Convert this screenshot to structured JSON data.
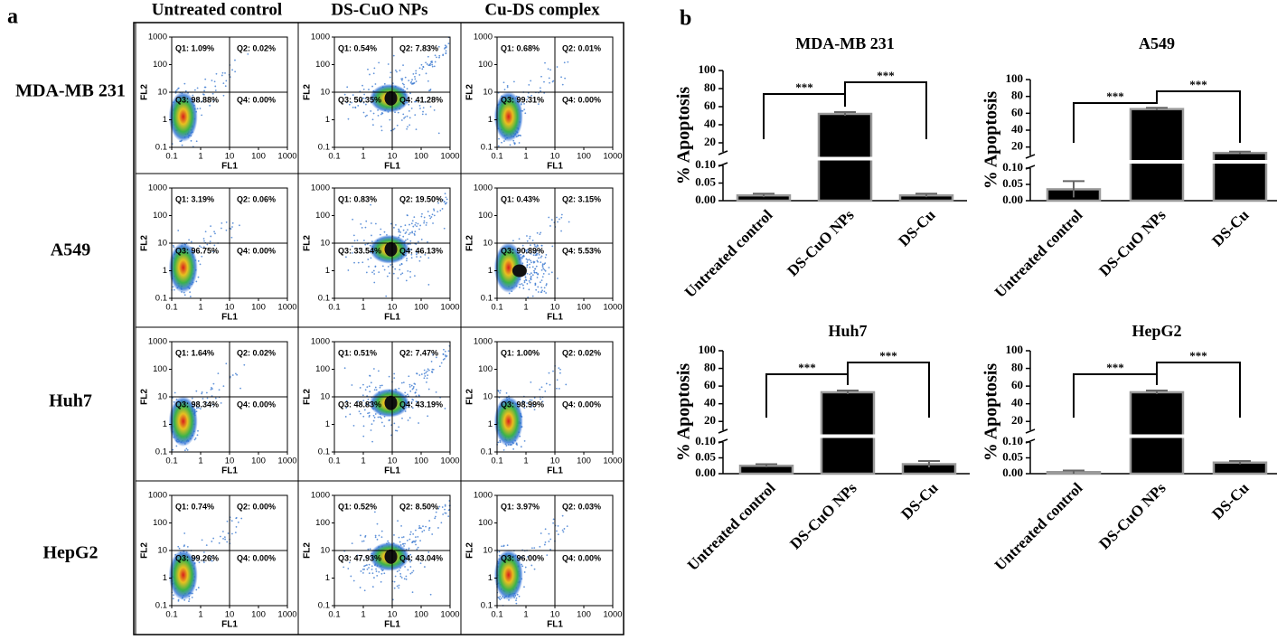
{
  "panel_labels": [
    "a",
    "b"
  ],
  "flow_cytometry": {
    "type": "scatter",
    "x_scale": "log",
    "y_scale": "log",
    "xlabel": "FL1",
    "ylabel": "FL2",
    "xlim": [
      0.1,
      1000
    ],
    "ylim": [
      0.1,
      1000
    ],
    "xticks": [
      0.1,
      1,
      10,
      100,
      1000
    ],
    "yticks": [
      0.1,
      1,
      10,
      100,
      1000
    ],
    "quadrant_gate": [
      10,
      10
    ],
    "columns": [
      "Untreated control",
      "DS-CuO NPs",
      "Cu-DS complex"
    ],
    "rows": [
      "MDA-MB 231",
      "A549",
      "Huh7",
      "HepG2"
    ],
    "quadrants": [
      [
        [
          "Q1: 1.09%",
          "Q2: 0.02%",
          "Q3: 98.88%",
          "Q4: 0.00%"
        ],
        [
          "Q1: 0.54%",
          "Q2: 7.83%",
          "Q3: 50.35%",
          "Q4: 41.28%"
        ],
        [
          "Q1: 0.68%",
          "Q2: 0.01%",
          "Q3: 99.31%",
          "Q4: 0.00%"
        ]
      ],
      [
        [
          "Q1: 3.19%",
          "Q2: 0.06%",
          "Q3: 96.75%",
          "Q4: 0.00%"
        ],
        [
          "Q1: 0.83%",
          "Q2: 19.50%",
          "Q3: 33.54%",
          "Q4: 46.13%"
        ],
        [
          "Q1: 0.43%",
          "Q2: 3.15%",
          "Q3: 90.89%",
          "Q4: 5.53%"
        ]
      ],
      [
        [
          "Q1: 1.64%",
          "Q2: 0.02%",
          "Q3: 98.34%",
          "Q4: 0.00%"
        ],
        [
          "Q1: 0.51%",
          "Q2: 7.47%",
          "Q3: 48.83%",
          "Q4: 43.19%"
        ],
        [
          "Q1: 1.00%",
          "Q2: 0.02%",
          "Q3: 98.99%",
          "Q4: 0.00%"
        ]
      ],
      [
        [
          "Q1: 0.74%",
          "Q2: 0.00%",
          "Q3: 99.26%",
          "Q4: 0.00%"
        ],
        [
          "Q1: 0.52%",
          "Q2: 8.50%",
          "Q3: 47.93%",
          "Q4: 43.04%"
        ],
        [
          "Q1: 3.97%",
          "Q2: 0.03%",
          "Q3: 96.00%",
          "Q4: 0.00%"
        ]
      ]
    ]
  },
  "chart_data": [
    {
      "type": "bar",
      "title": "MDA-MB 231",
      "ylabel": "% Apoptosis",
      "categories": [
        "Untreated control",
        "DS-CuO NPs",
        "DS-Cu"
      ],
      "values": [
        0.015,
        52,
        0.015
      ],
      "errors": [
        0.005,
        2,
        0.005
      ],
      "color": "#000000",
      "ylim": [
        0,
        100
      ],
      "axis_break": [
        0.1,
        10
      ],
      "yticks": [
        {
          "value": 0,
          "label": "0.00"
        },
        {
          "value": 0.05,
          "label": "0.05"
        },
        {
          "value": 0.1,
          "label": "0.10"
        },
        20,
        40,
        60,
        80,
        100
      ],
      "significance_labels": [
        "***",
        "***"
      ]
    },
    {
      "type": "bar",
      "title": "A549",
      "ylabel": "% Apoptosis",
      "categories": [
        "Untreated control",
        "DS-CuO NPs",
        "DS-Cu"
      ],
      "values": [
        0.035,
        65,
        13
      ],
      "errors": [
        0.025,
        1.5,
        1.5
      ],
      "color": "#000000",
      "ylim": [
        0,
        100
      ],
      "axis_break": [
        0.1,
        10
      ],
      "yticks": [
        {
          "value": 0,
          "label": "0.00"
        },
        {
          "value": 0.05,
          "label": "0.05"
        },
        {
          "value": 0.1,
          "label": "0.10"
        },
        20,
        40,
        60,
        80,
        100
      ],
      "significance_labels": [
        "***",
        "***"
      ]
    },
    {
      "type": "bar",
      "title": "Huh7",
      "ylabel": "% Apoptosis",
      "categories": [
        "Untreated control",
        "DS-CuO NPs",
        "DS-Cu"
      ],
      "values": [
        0.025,
        53,
        0.03
      ],
      "errors": [
        0.005,
        2,
        0.01
      ],
      "color": "#000000",
      "ylim": [
        0,
        100
      ],
      "axis_break": [
        0.1,
        10
      ],
      "yticks": [
        {
          "value": 0,
          "label": "0.00"
        },
        {
          "value": 0.05,
          "label": "0.05"
        },
        {
          "value": 0.1,
          "label": "0.10"
        },
        20,
        40,
        60,
        80,
        100
      ],
      "significance_labels": [
        "***",
        "***"
      ]
    },
    {
      "type": "bar",
      "title": "HepG2",
      "ylabel": "% Apoptosis",
      "categories": [
        "Untreated control",
        "DS-CuO NPs",
        "DS-Cu"
      ],
      "values": [
        0.005,
        53,
        0.035
      ],
      "errors": [
        0.005,
        2,
        0.005
      ],
      "color": "#000000",
      "ylim": [
        0,
        100
      ],
      "axis_break": [
        0.1,
        10
      ],
      "yticks": [
        {
          "value": 0,
          "label": "0.00"
        },
        {
          "value": 0.05,
          "label": "0.05"
        },
        {
          "value": 0.1,
          "label": "0.10"
        },
        20,
        40,
        60,
        80,
        100
      ],
      "significance_labels": [
        "***",
        "***"
      ]
    }
  ]
}
